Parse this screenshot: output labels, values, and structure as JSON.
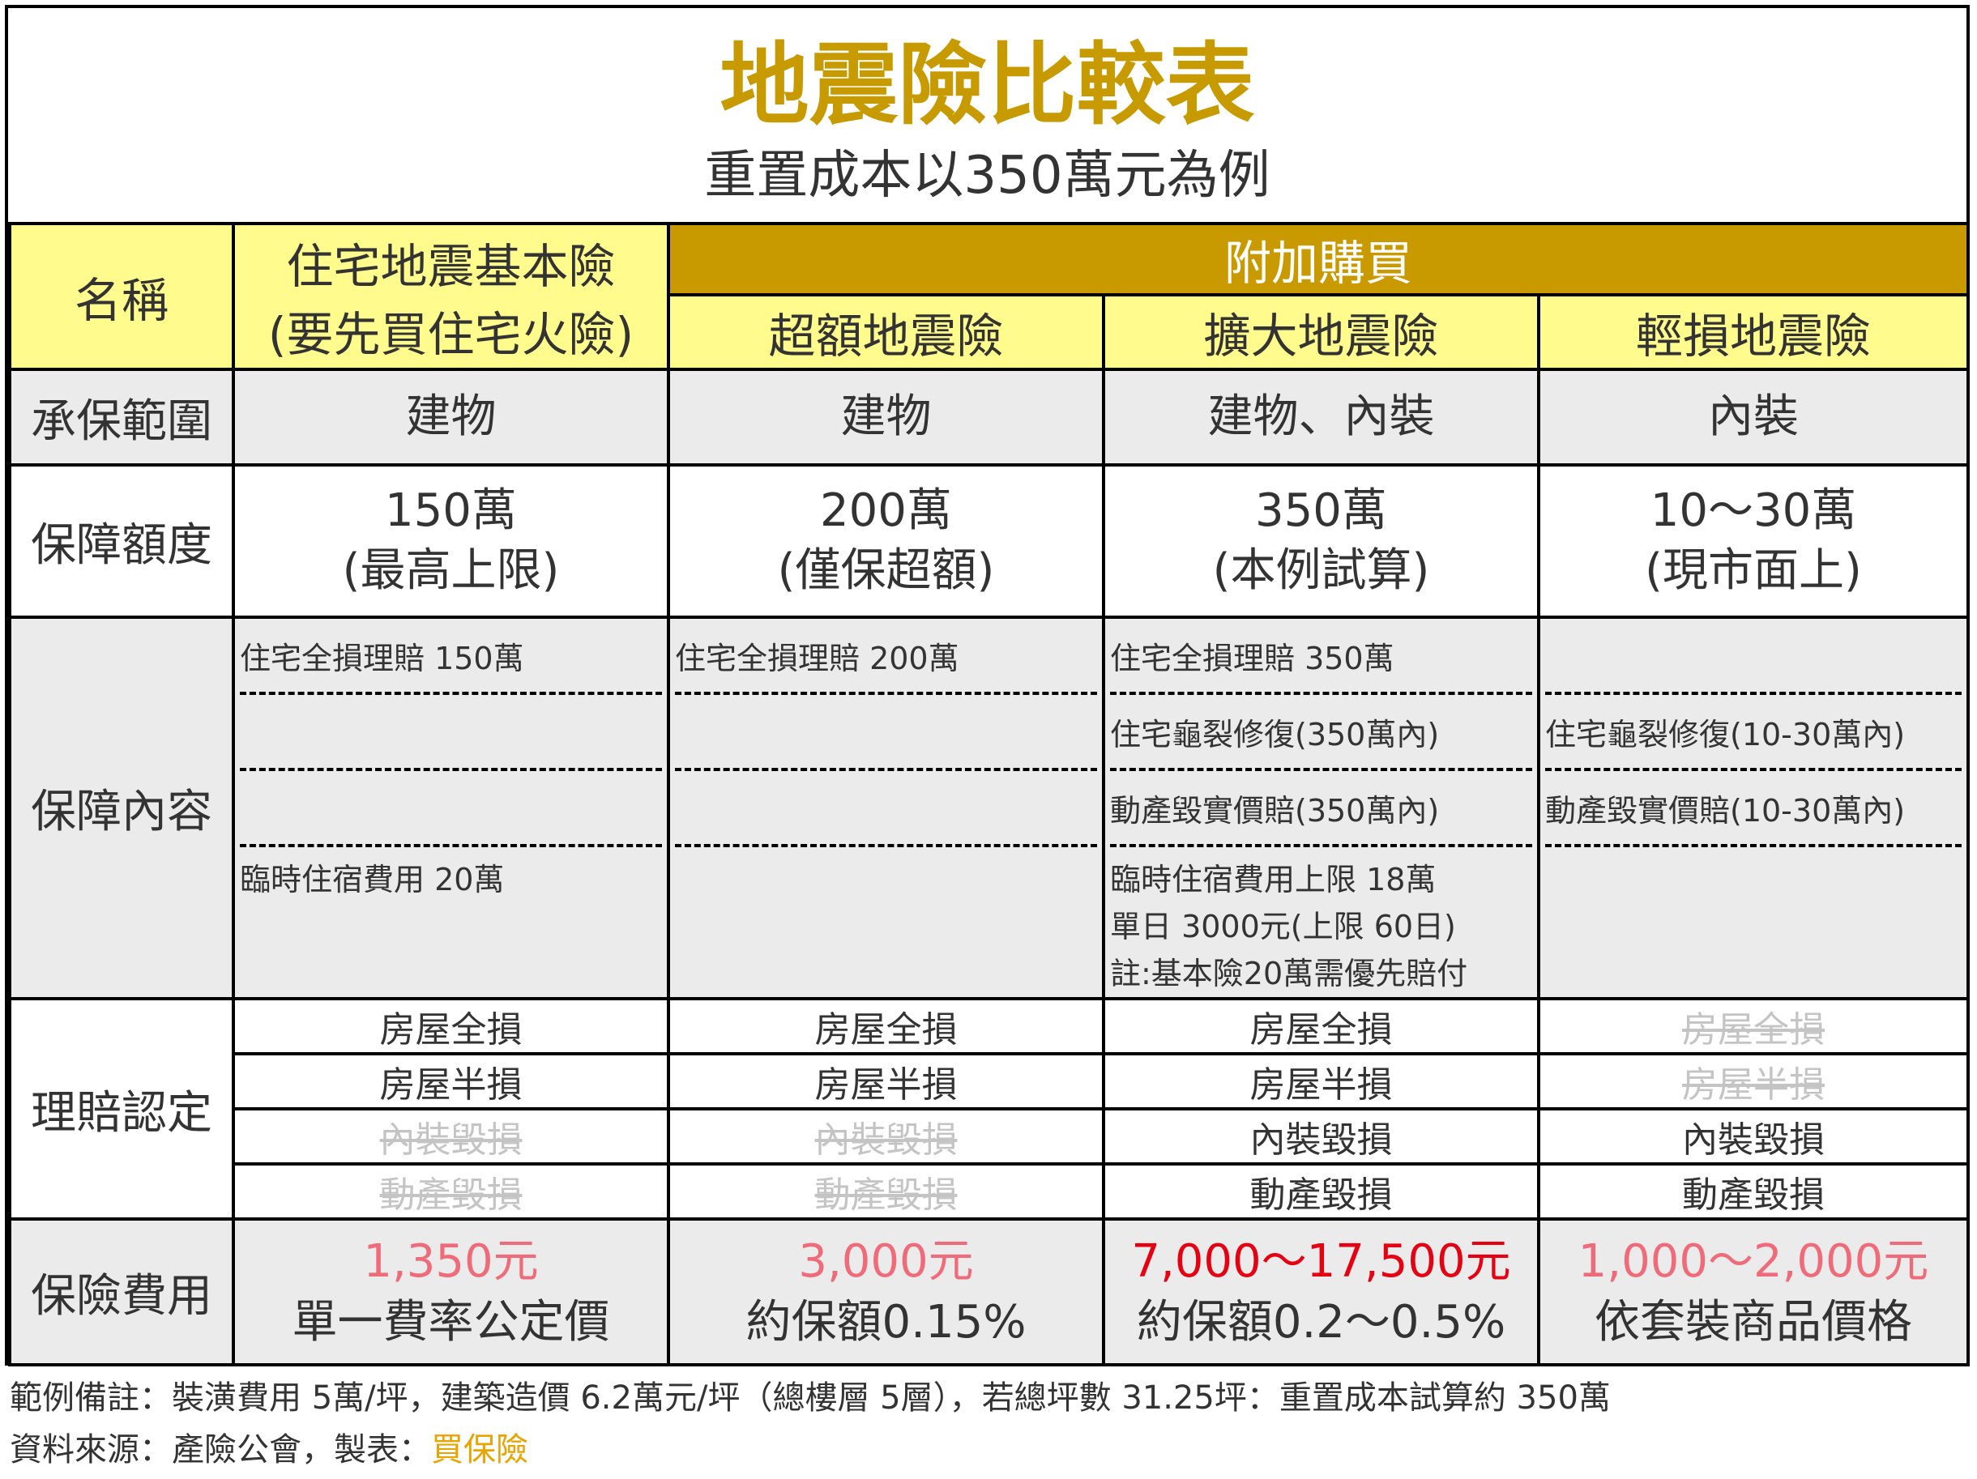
{
  "title": "地震險比較表",
  "subtitle": "重置成本以350萬元為例",
  "header": {
    "name_label": "名稱",
    "basic_line1": "住宅地震基本險",
    "basic_line2": "(要先買住宅火險)",
    "addon_label": "附加購買",
    "plans": [
      "超額地震險",
      "擴大地震險",
      "輕損地震險"
    ]
  },
  "rows": {
    "scope": {
      "label": "承保範圍",
      "values": [
        "建物",
        "建物",
        "建物、內裝",
        "內裝"
      ]
    },
    "limit": {
      "label": "保障額度",
      "values": [
        {
          "amount": "150萬",
          "note": "(最高上限)"
        },
        {
          "amount": "200萬",
          "note": "(僅保超額)"
        },
        {
          "amount": "350萬",
          "note": "(本例試算)"
        },
        {
          "amount": "10～30萬",
          "note": "(現市面上)"
        }
      ]
    },
    "coverage": {
      "label": "保障內容",
      "cols": [
        [
          "住宅全損理賠 150萬",
          "",
          "",
          "臨時住宿費用 20萬"
        ],
        [
          "住宅全損理賠 200萬",
          "",
          "",
          ""
        ],
        [
          "住宅全損理賠 350萬",
          "住宅龜裂修復(350萬內)",
          "動產毀實價賠(350萬內)",
          "臨時住宿費用上限 18萬\n單日 3000元(上限 60日)\n註:基本險20萬需優先賠付"
        ],
        [
          "",
          "住宅龜裂修復(10-30萬內)",
          "動產毀實價賠(10-30萬內)",
          ""
        ]
      ]
    },
    "claims": {
      "label": "理賠認定",
      "items": [
        "房屋全損",
        "房屋半損",
        "內裝毀損",
        "動產毀損"
      ],
      "covered": [
        [
          true,
          true,
          false,
          false
        ],
        [
          true,
          true,
          false,
          false
        ],
        [
          true,
          true,
          true,
          true
        ],
        [
          false,
          false,
          true,
          true
        ]
      ]
    },
    "premium": {
      "label": "保險費用",
      "values": [
        {
          "price": "1,350元",
          "desc": "單一費率公定價",
          "color": "#f06b7a"
        },
        {
          "price": "3,000元",
          "desc": "約保額0.15%",
          "color": "#f06b7a"
        },
        {
          "price": "7,000～17,500元",
          "desc": "約保額0.2～0.5%",
          "color": "#e50012"
        },
        {
          "price": "1,000～2,000元",
          "desc": "依套裝商品價格",
          "color": "#f06b7a"
        }
      ]
    }
  },
  "notes": {
    "example": "範例備註：裝潢費用 5萬/坪，建築造價 6.2萬元/坪（總樓層 5層），若總坪數 31.25坪：重置成本試算約 350萬",
    "source_prefix": "資料來源：產險公會，製表：",
    "source_highlight": "買保險"
  },
  "colors": {
    "title": "#c79a00",
    "header_yellow": "#fffb8c",
    "header_gold": "#c99a00",
    "row_grey": "#ebebeb",
    "strike_grey": "#c4c4c4"
  }
}
